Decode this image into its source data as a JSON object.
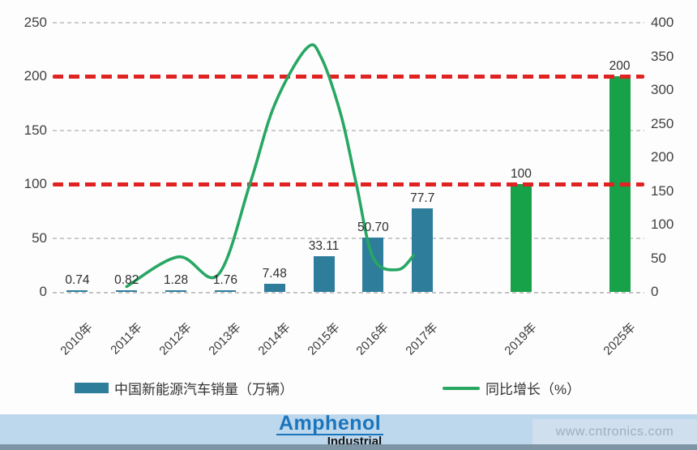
{
  "colors": {
    "bar_actual": "#2E7D9B",
    "bar_forecast": "#17A24A",
    "growth_line": "#27A763",
    "target_line": "#E02222",
    "gridline": "#CBCBCB",
    "footer_strip": "#BDD7EC",
    "bottom_strip": "#7E95A6",
    "logo_blue": "#1B75BC"
  },
  "chart_data": {
    "type": "bar",
    "subtype": "bar+line combo, dual axis",
    "title": "",
    "categories": [
      "2010年",
      "2011年",
      "2012年",
      "2013年",
      "2014年",
      "2015年",
      "2016年",
      "2017年",
      "2019年",
      "2025年"
    ],
    "x_slots": [
      0,
      1,
      2,
      3,
      4,
      5,
      6,
      7,
      9,
      11
    ],
    "n_slots": 12,
    "series": [
      {
        "name": "中国新能源汽车销量（万辆）",
        "type": "bar",
        "axis": "left",
        "values": [
          0.74,
          0.82,
          1.28,
          1.76,
          7.48,
          33.11,
          50.7,
          77.7,
          100,
          200
        ],
        "value_labels": [
          "0.74",
          "0.82",
          "1.28",
          "1.76",
          "7.48",
          "33.11",
          "50.70",
          "77.7",
          "100",
          "200"
        ],
        "forecast": [
          false,
          false,
          false,
          false,
          false,
          false,
          false,
          false,
          true,
          true
        ]
      },
      {
        "name": "同比增长（%）",
        "type": "line",
        "axis": "right",
        "points": [
          {
            "x": 1.0,
            "value": 8
          },
          {
            "x": 2.05,
            "value": 52
          },
          {
            "x": 2.85,
            "value": 25
          },
          {
            "x": 3.5,
            "value": 160
          },
          {
            "x": 4.0,
            "value": 278
          },
          {
            "x": 4.65,
            "value": 362
          },
          {
            "x": 4.95,
            "value": 348
          },
          {
            "x": 5.35,
            "value": 262
          },
          {
            "x": 5.66,
            "value": 160
          },
          {
            "x": 6.0,
            "value": 51
          },
          {
            "x": 6.5,
            "value": 33
          },
          {
            "x": 6.82,
            "value": 54
          }
        ]
      }
    ],
    "left_axis": {
      "min": 0,
      "max": 250,
      "step": 50,
      "tick_labels": [
        "0",
        "50",
        "100",
        "150",
        "200",
        "250"
      ]
    },
    "right_axis": {
      "min": 0,
      "max": 400,
      "step": 50,
      "tick_labels": [
        "0",
        "50",
        "100",
        "150",
        "200",
        "250",
        "300",
        "350",
        "400"
      ]
    },
    "target_lines": [
      {
        "axis": "left",
        "value": 100
      },
      {
        "axis": "left",
        "value": 200
      }
    ],
    "gridlines": {
      "axis": "left",
      "values": [
        50,
        150,
        250
      ]
    },
    "legend_position": "bottom"
  },
  "legend": {
    "items": [
      {
        "label": "中国新能源汽车销量（万辆）",
        "swatch": "bar"
      },
      {
        "label": "同比增长（%）",
        "swatch": "line"
      }
    ]
  },
  "footer": {
    "logo_top": "Amphenol",
    "logo_bottom": "Industrial",
    "watermark": "www.cntronics.com"
  }
}
